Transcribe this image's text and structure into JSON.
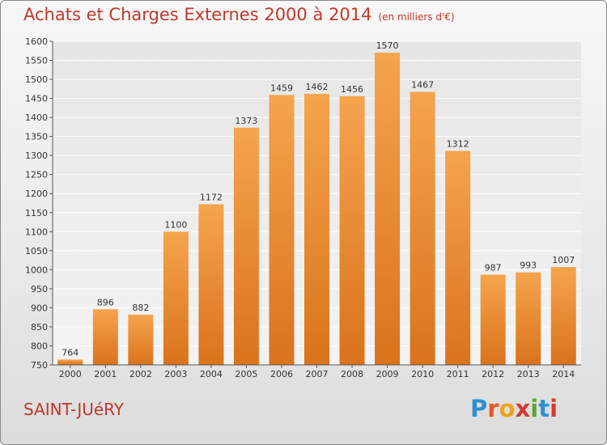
{
  "header": {
    "title": "Achats et Charges Externes 2000 à 2014",
    "units": "(en milliers d'€)"
  },
  "footer": {
    "commune": "SAINT-JUéRY",
    "brand_letters": [
      "P",
      "r",
      "o",
      "x",
      "i",
      "t",
      "i"
    ]
  },
  "colors": {
    "title": "#c0392b",
    "bar_light": "#f6a44e",
    "bar_dark": "#d9731c"
  },
  "chart_data": {
    "type": "bar",
    "categories": [
      "2000",
      "2001",
      "2002",
      "2003",
      "2004",
      "2005",
      "2006",
      "2007",
      "2008",
      "2009",
      "2010",
      "2011",
      "2012",
      "2013",
      "2014"
    ],
    "values": [
      764,
      896,
      882,
      1100,
      1172,
      1373,
      1459,
      1462,
      1456,
      1570,
      1467,
      1312,
      987,
      993,
      1007
    ],
    "yticks": [
      750,
      800,
      850,
      900,
      950,
      1000,
      1050,
      1100,
      1150,
      1200,
      1250,
      1300,
      1350,
      1400,
      1450,
      1500,
      1550,
      1600
    ],
    "ylim": [
      750,
      1600
    ],
    "grid": true,
    "legend": "none"
  }
}
